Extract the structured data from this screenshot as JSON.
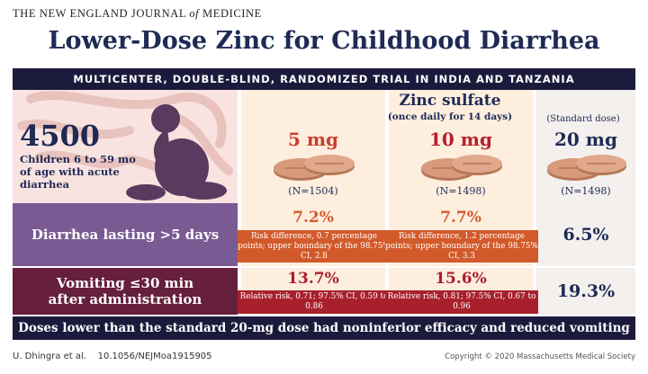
{
  "journal": {
    "prefix": "THE NEW ENGLAND JOURNAL ",
    "of": "of",
    "suffix": " MEDICINE"
  },
  "title": "Lower-Dose Zinc for Childhood Diarrhea",
  "subtitle": "MULTICENTER, DOUBLE-BLIND, RANDOMIZED TRIAL IN INDIA AND TANZANIA",
  "population": {
    "count": "4500",
    "description": "Children 6 to 59 mo of age with acute diarrhea"
  },
  "treatment": {
    "name": "Zinc sulfate",
    "schedule": "(once daily for 14 days)",
    "standard_label": "(Standard dose)"
  },
  "arms": [
    {
      "dose": "5 mg",
      "n": "(N=1504)"
    },
    {
      "dose": "10 mg",
      "n": "(N=1498)"
    },
    {
      "dose": "20 mg",
      "n": "(N=1498)"
    }
  ],
  "outcomes": [
    {
      "label": "Diarrhea lasting >5 days",
      "values": [
        "7.2%",
        "7.7%",
        "6.5%"
      ],
      "notes": [
        "Risk difference, 0.7 percentage points; upper boundary of the 98.75% CI, 2.8",
        "Risk difference, 1.2 percentage points; upper boundary of the 98.75% CI, 3.3"
      ]
    },
    {
      "label": "Vomiting ≤30 min after administration",
      "label_line1": "Vomiting ≤30 min",
      "label_line2": "after administration",
      "values": [
        "13.7%",
        "15.6%",
        "19.3%"
      ],
      "notes": [
        "Relative risk, 0.71; 97.5% CI, 0.59 to 0.86",
        "Relative risk, 0.81; 97.5% CI, 0.67 to 0.96"
      ]
    }
  ],
  "conclusion": "Doses lower than the standard 20-mg dose had noninferior efficacy and reduced vomiting",
  "citation": {
    "authors": "U. Dhingra et al.",
    "doi": "10.1056/NEJMoa1915905"
  },
  "copyright": "Copyright © 2020 Massachusetts Medical Society",
  "colors": {
    "navy": "#1f2a55",
    "bar": "#1c1a3c",
    "purple": "#7a5a93",
    "maroon": "#661f3c",
    "orange_box": "#d25a2a",
    "red_box": "#a8202c",
    "dose_5": "#cc3d2a",
    "dose_10": "#b8202c",
    "dose_20": "#1f2a55",
    "pill": "#d89a7c"
  }
}
